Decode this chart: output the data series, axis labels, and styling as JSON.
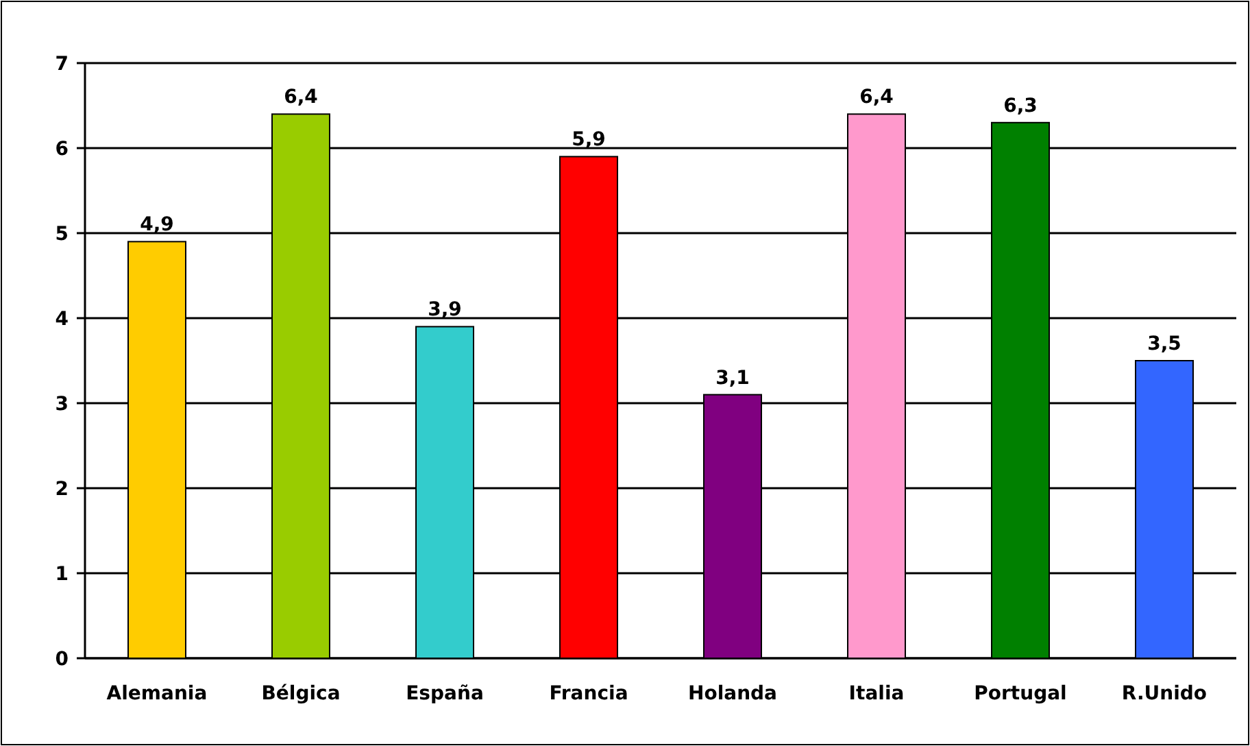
{
  "chart_data": {
    "type": "bar",
    "categories": [
      "Alemania",
      "Bélgica",
      "España",
      "Francia",
      "Holanda",
      "Italia",
      "Portugal",
      "R.Unido"
    ],
    "values": [
      4.9,
      6.4,
      3.9,
      5.9,
      3.1,
      6.4,
      6.3,
      3.5
    ],
    "colors": [
      "#ffcc00",
      "#99cc00",
      "#33cccc",
      "#ff0000",
      "#800080",
      "#ff99cc",
      "#008000",
      "#3366ff"
    ],
    "value_labels": [
      "4,9",
      "6,4",
      "3,9",
      "5,9",
      "3,1",
      "6,4",
      "6,3",
      "3,5"
    ],
    "ylim": [
      0,
      7
    ],
    "yticks": [
      0,
      1,
      2,
      3,
      4,
      5,
      6,
      7
    ],
    "grid": "y"
  }
}
